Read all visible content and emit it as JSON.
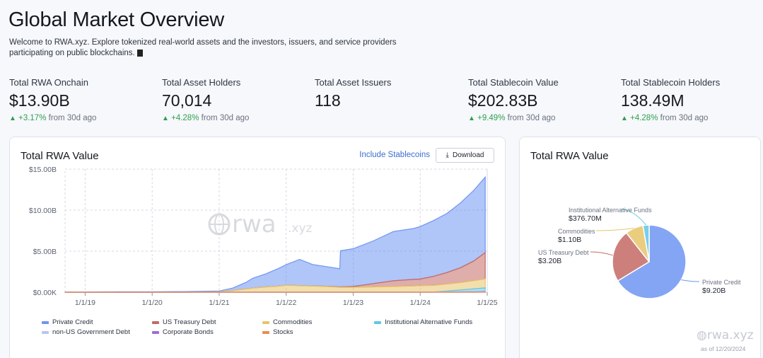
{
  "header": {
    "title": "Global Market Overview",
    "intro": "Welcome to RWA.xyz. Explore tokenized real-world assets and the investors, issuers, and service providers participating on public blockchains."
  },
  "stats": [
    {
      "label": "Total RWA Onchain",
      "value": "$13.90B",
      "change": "+3.17%",
      "suffix": "from 30d ago"
    },
    {
      "label": "Total Asset Holders",
      "value": "70,014",
      "change": "+4.28%",
      "suffix": "from 30d ago"
    },
    {
      "label": "Total Asset Issuers",
      "value": "118",
      "change": "",
      "suffix": ""
    },
    {
      "label": "Total Stablecoin Value",
      "value": "$202.83B",
      "change": "+9.49%",
      "suffix": "from 30d ago"
    },
    {
      "label": "Total Stablecoin Holders",
      "value": "138.49M",
      "change": "+4.28%",
      "suffix": "from 30d ago"
    }
  ],
  "area_card": {
    "title": "Total RWA Value",
    "include_label": "Include Stablecoins",
    "download_label": "Download",
    "watermark": "rwa.xyz"
  },
  "pie_card": {
    "title": "Total RWA Value",
    "watermark": "rwa.xyz",
    "as_of": "as of 12/20/2024"
  },
  "colors": {
    "private_credit": "#6f95f2",
    "us_treasury": "#c46a64",
    "commodities": "#e8c46a",
    "alt_funds": "#5fc8e6",
    "non_us_gov": "#b9c7ee",
    "corporate_bonds": "#9b6fd6",
    "stocks": "#e98b57",
    "positive": "#2e9f4f",
    "link": "#3b6fd1"
  },
  "chart_data": [
    {
      "type": "area",
      "title": "Total RWA Value",
      "yticks": [
        "$0.00K",
        "$5.00B",
        "$10.00B",
        "$15.00B"
      ],
      "xticks": [
        "1/1/19",
        "1/1/20",
        "1/1/21",
        "1/1/22",
        "1/1/23",
        "1/1/24",
        "1/1/25"
      ],
      "ylim": [
        0,
        15
      ],
      "y_unit": "$B",
      "x": [
        2018.7,
        2019.0,
        2019.5,
        2020.0,
        2020.5,
        2021.0,
        2021.2,
        2021.4,
        2021.5,
        2021.7,
        2021.9,
        2022.0,
        2022.2,
        2022.4,
        2022.6,
        2022.8,
        2022.81,
        2023.0,
        2023.3,
        2023.6,
        2023.9,
        2024.0,
        2024.2,
        2024.4,
        2024.6,
        2024.8,
        2024.97
      ],
      "series": [
        {
          "name": "Stocks",
          "values": [
            0,
            0,
            0,
            0,
            0,
            0,
            0,
            0,
            0,
            0,
            0,
            0,
            0,
            0,
            0,
            0,
            0,
            0,
            0,
            0,
            0,
            0,
            0,
            0,
            0,
            0,
            0.02
          ]
        },
        {
          "name": "Corporate Bonds",
          "values": [
            0,
            0,
            0,
            0,
            0,
            0,
            0,
            0,
            0,
            0,
            0,
            0,
            0,
            0,
            0,
            0,
            0,
            0,
            0,
            0,
            0,
            0,
            0,
            0,
            0.01,
            0.02,
            0.03
          ]
        },
        {
          "name": "non-US Government Debt",
          "values": [
            0,
            0,
            0,
            0,
            0,
            0,
            0,
            0,
            0,
            0,
            0,
            0,
            0,
            0,
            0,
            0,
            0,
            0,
            0,
            0,
            0.01,
            0.02,
            0.03,
            0.05,
            0.07,
            0.09,
            0.1
          ]
        },
        {
          "name": "Institutional Alternative Funds",
          "values": [
            0,
            0,
            0,
            0,
            0,
            0,
            0,
            0,
            0,
            0,
            0,
            0,
            0,
            0,
            0,
            0,
            0,
            0,
            0,
            0,
            0,
            0,
            0,
            0.1,
            0.2,
            0.3,
            0.38
          ]
        },
        {
          "name": "Commodities",
          "values": [
            0,
            0,
            0,
            0,
            0,
            0.05,
            0.2,
            0.4,
            0.5,
            0.65,
            0.75,
            0.85,
            0.8,
            0.75,
            0.7,
            0.6,
            0.6,
            0.6,
            0.65,
            0.7,
            0.75,
            0.78,
            0.8,
            0.85,
            0.9,
            1.0,
            1.1
          ]
        },
        {
          "name": "US Treasury Debt",
          "values": [
            0,
            0,
            0,
            0,
            0,
            0,
            0,
            0,
            0,
            0,
            0,
            0,
            0,
            0.01,
            0.02,
            0.05,
            0.05,
            0.1,
            0.4,
            0.7,
            0.8,
            0.8,
            1.1,
            1.4,
            1.8,
            2.4,
            3.2
          ]
        },
        {
          "name": "Private Credit",
          "values": [
            0.02,
            0.03,
            0.05,
            0.06,
            0.08,
            0.1,
            0.3,
            0.8,
            1.2,
            1.6,
            2.2,
            2.5,
            3.2,
            2.6,
            2.4,
            2.2,
            4.4,
            4.6,
            5.2,
            6.0,
            6.2,
            6.4,
            6.8,
            7.2,
            7.9,
            8.6,
            9.2
          ]
        }
      ]
    },
    {
      "type": "pie",
      "title": "Total RWA Value",
      "slices": [
        {
          "name": "Private Credit",
          "label": "$9.20B",
          "value": 9.2
        },
        {
          "name": "US Treasury Debt",
          "label": "$3.20B",
          "value": 3.2
        },
        {
          "name": "Commodities",
          "label": "$1.10B",
          "value": 1.1
        },
        {
          "name": "Institutional Alternative Funds",
          "label": "$376.70M",
          "value": 0.3767
        }
      ]
    }
  ],
  "legend": [
    {
      "name": "Private Credit",
      "color": "#6f95f2"
    },
    {
      "name": "US Treasury Debt",
      "color": "#c46a64"
    },
    {
      "name": "Commodities",
      "color": "#e8c46a"
    },
    {
      "name": "Institutional Alternative Funds",
      "color": "#5fc8e6"
    },
    {
      "name": "non-US Government Debt",
      "color": "#b9c7ee"
    },
    {
      "name": "Corporate Bonds",
      "color": "#9b6fd6"
    },
    {
      "name": "Stocks",
      "color": "#e98b57"
    }
  ]
}
